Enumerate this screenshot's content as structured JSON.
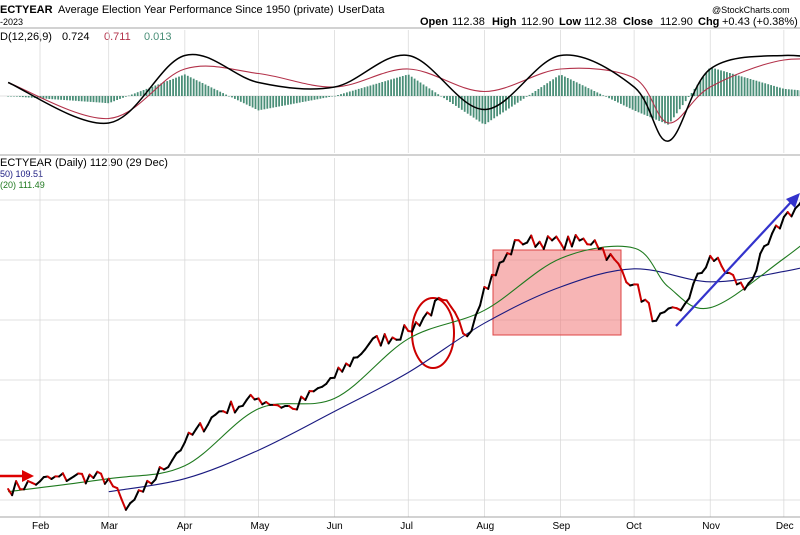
{
  "header": {
    "symbol": "ECTYEAR",
    "description": "Average Election Year Performance Since 1950 (private)",
    "source": "UserData",
    "watermark": "@StockCharts.com",
    "date_range": "-2023",
    "open_label": "Open",
    "open": "112.38",
    "high_label": "High",
    "high": "112.90",
    "low_label": "Low",
    "low": "112.38",
    "close_label": "Close",
    "close": "112.90",
    "chg_label": "Chg",
    "chg": "+0.43 (+0.38%)"
  },
  "macd_panel": {
    "label": "D(12,26,9)",
    "macd": "0.724",
    "signal": "0.711",
    "hist": "0.013"
  },
  "price_panel": {
    "label": "ECTYEAR (Daily) 112.90 (29 Dec)",
    "ma50_label": "50) 109.51",
    "ma20_label": "(20) 111.49"
  },
  "colors": {
    "price_up": "#000000",
    "price_down": "#cc0000",
    "ma20": "#1f7a1f",
    "ma50": "#1a1a80",
    "macd": "#000000",
    "signal": "#b3324a",
    "hist": "#4a8f78",
    "highlight_box": "#f07878",
    "circle": "#cc0000",
    "trend_arrow": "#3333cc",
    "red_arrow": "#dd0000"
  },
  "chart_data": {
    "type": "line",
    "x_axis_months": [
      "Feb",
      "Mar",
      "Apr",
      "May",
      "Jun",
      "Jul",
      "Aug",
      "Sep",
      "Oct",
      "Nov",
      "Dec"
    ],
    "price_series": {
      "name": "ECTYEAR",
      "x": [
        "Jan 19",
        "Feb 1",
        "Feb 15",
        "Mar 1",
        "Mar 8",
        "Mar 15",
        "Apr 1",
        "Apr 15",
        "May 1",
        "May 15",
        "Jun 1",
        "Jun 15",
        "Jul 1",
        "Jul 15",
        "Jul 25",
        "Aug 1",
        "Aug 15",
        "Sep 1",
        "Sep 15",
        "Oct 1",
        "Oct 10",
        "Oct 20",
        "Nov 1",
        "Nov 15",
        "Dec 1",
        "Dec 15",
        "Dec 29"
      ],
      "y": [
        100.5,
        100.8,
        101.0,
        100.9,
        99.7,
        100.4,
        102.3,
        103.5,
        104.0,
        103.6,
        104.8,
        106.1,
        106.6,
        107.8,
        106.4,
        108.3,
        110.1,
        110.0,
        110.1,
        108.4,
        107.0,
        107.4,
        109.5,
        108.2,
        111.0,
        112.0,
        112.9
      ]
    },
    "ma20": {
      "name": "(20) 111.49",
      "x": [
        "Jan 19",
        "Mar 1",
        "Apr 1",
        "May 1",
        "Jun 1",
        "Jul 1",
        "Aug 1",
        "Sep 1",
        "Oct 1",
        "Oct 15",
        "Nov 1",
        "Dec 1",
        "Dec 29"
      ],
      "y": [
        100.4,
        100.9,
        101.4,
        103.6,
        104.0,
        106.3,
        107.4,
        109.4,
        109.8,
        108.3,
        107.5,
        109.4,
        111.5
      ]
    },
    "ma50": {
      "name": "50) 109.51",
      "x": [
        "Mar 1",
        "Apr 1",
        "May 1",
        "Jun 1",
        "Jul 1",
        "Aug 1",
        "Sep 1",
        "Oct 1",
        "Nov 1",
        "Dec 1",
        "Dec 29"
      ],
      "y": [
        100.4,
        100.9,
        102.0,
        103.5,
        105.0,
        106.9,
        108.3,
        109.0,
        108.5,
        108.9,
        109.5
      ]
    },
    "macd_series": {
      "macd": {
        "name": "0.724",
        "x": [
          "Jan 19",
          "Mar 1",
          "Apr 1",
          "May 1",
          "Jun 1",
          "Jul 1",
          "Aug 1",
          "Sep 1",
          "Oct 1",
          "Oct 15",
          "Nov 1",
          "Dec 1",
          "Dec 29"
        ],
        "y": [
          0.3,
          -0.6,
          0.9,
          0.3,
          0.2,
          0.9,
          -0.3,
          0.9,
          0.2,
          -1.0,
          0.6,
          0.9,
          0.72
        ]
      },
      "signal": {
        "name": "0.711",
        "x": [
          "Jan 19",
          "Mar 1",
          "Apr 1",
          "May 1",
          "Jun 1",
          "Jul 1",
          "Aug 1",
          "Sep 1",
          "Oct 1",
          "Oct 15",
          "Nov 1",
          "Dec 1",
          "Dec 29"
        ],
        "y": [
          0.3,
          -0.5,
          0.6,
          0.5,
          0.2,
          0.6,
          0.1,
          0.6,
          0.4,
          -0.6,
          0.2,
          0.8,
          0.71
        ]
      }
    }
  }
}
